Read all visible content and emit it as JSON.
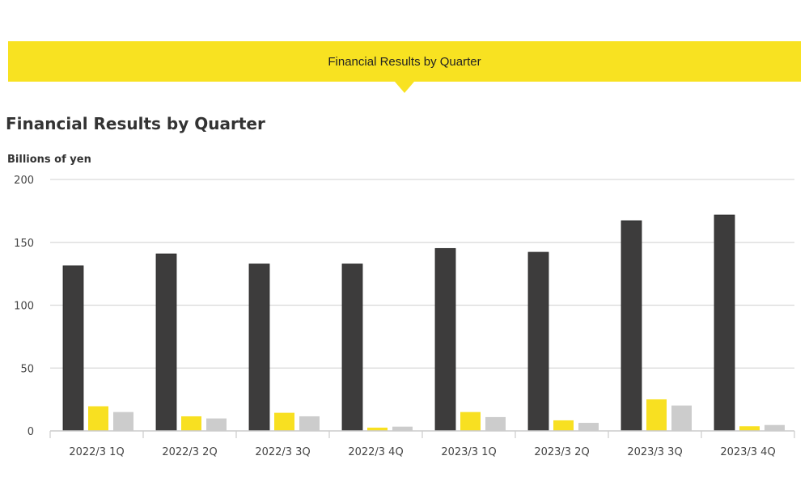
{
  "banner": {
    "label": "Financial Results by Quarter"
  },
  "chart_data": {
    "type": "bar",
    "title": "Financial Results by Quarter",
    "ylabel": "Billions of yen",
    "xlabel": "",
    "ylim": [
      0,
      200
    ],
    "yticks": [
      0,
      50,
      100,
      150,
      200
    ],
    "grid": true,
    "categories": [
      "2022/3 1Q",
      "2022/3 2Q",
      "2022/3 3Q",
      "2022/3 4Q",
      "2023/3 1Q",
      "2023/3 2Q",
      "2023/3 3Q",
      "2023/3 4Q"
    ],
    "series": [
      {
        "color": "#3d3c3c",
        "values": [
          131.3,
          140.8,
          132.8,
          132.8,
          145.1,
          142.1,
          167.2,
          171.7
        ]
      },
      {
        "color": "#f8e021",
        "values": [
          19.6,
          11.6,
          14.4,
          2.6,
          15.0,
          8.4,
          25.1,
          3.7
        ]
      },
      {
        "color": "#cccccc",
        "values": [
          15.0,
          9.9,
          11.6,
          3.4,
          11.0,
          6.4,
          20.2,
          4.7
        ]
      }
    ]
  }
}
